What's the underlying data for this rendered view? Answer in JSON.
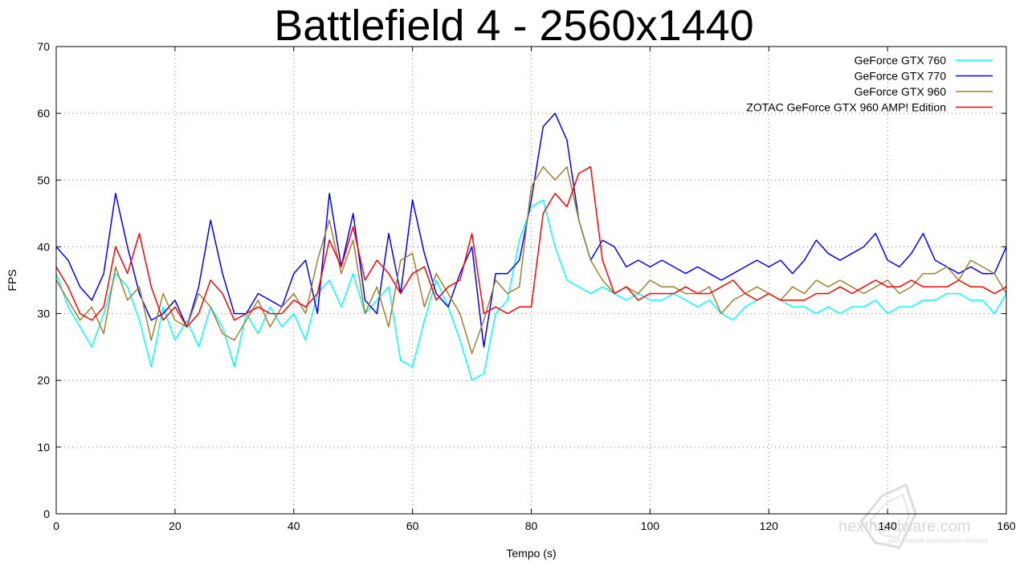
{
  "chart_data": {
    "type": "line",
    "title": "Battlefield 4 - 2560x1440",
    "xlabel": "Tempo (s)",
    "ylabel": "FPS",
    "xlim": [
      0,
      160
    ],
    "ylim": [
      0,
      70
    ],
    "xticks": [
      "0",
      "20",
      "40",
      "60",
      "80",
      "100",
      "120",
      "140",
      "160"
    ],
    "yticks": [
      "0",
      "10",
      "20",
      "30",
      "40",
      "50",
      "60",
      "70"
    ],
    "grid": true,
    "legend_position": "top-right",
    "series": [
      {
        "name": "GeForce GTX 760",
        "color": "#00ffff",
        "x": [
          0,
          2,
          4,
          6,
          8,
          10,
          12,
          14,
          16,
          18,
          20,
          22,
          24,
          26,
          28,
          30,
          32,
          34,
          36,
          38,
          40,
          42,
          44,
          46,
          48,
          50,
          52,
          54,
          56,
          58,
          60,
          62,
          64,
          66,
          68,
          70,
          72,
          74,
          76,
          78,
          80,
          82,
          84,
          86,
          88,
          90,
          92,
          94,
          96,
          98,
          100,
          102,
          104,
          106,
          108,
          110,
          112,
          114,
          116,
          118,
          120,
          122,
          124,
          126,
          128,
          130,
          132,
          134,
          136,
          138,
          140,
          142,
          144,
          146,
          148,
          150,
          152,
          154,
          156,
          158,
          160
        ],
        "y": [
          36,
          31,
          28,
          25,
          30,
          36,
          34,
          29,
          22,
          31,
          26,
          29,
          25,
          31,
          28,
          22,
          30,
          27,
          31,
          28,
          30,
          26,
          33,
          35,
          31,
          36,
          30,
          32,
          34,
          23,
          22,
          29,
          35,
          31,
          26,
          20,
          21,
          30,
          32,
          41,
          46,
          47,
          40,
          35,
          34,
          33,
          34,
          33,
          32,
          33,
          32,
          32,
          33,
          32,
          31,
          32,
          30,
          29,
          31,
          32,
          33,
          32,
          31,
          31,
          30,
          31,
          30,
          31,
          31,
          32,
          30,
          31,
          31,
          32,
          32,
          33,
          33,
          32,
          32,
          30,
          33
        ]
      },
      {
        "name": "GeForce GTX 770",
        "color": "#0000ff",
        "x": [
          0,
          2,
          4,
          6,
          8,
          10,
          12,
          14,
          16,
          18,
          20,
          22,
          24,
          26,
          28,
          30,
          32,
          34,
          36,
          38,
          40,
          42,
          44,
          46,
          48,
          50,
          52,
          54,
          56,
          58,
          60,
          62,
          64,
          66,
          68,
          70,
          72,
          74,
          76,
          78,
          80,
          82,
          84,
          86,
          88,
          90,
          92,
          94,
          96,
          98,
          100,
          102,
          104,
          106,
          108,
          110,
          112,
          114,
          116,
          118,
          120,
          122,
          124,
          126,
          128,
          130,
          132,
          134,
          136,
          138,
          140,
          142,
          144,
          146,
          148,
          150,
          152,
          154,
          156,
          158,
          160
        ],
        "y": [
          40,
          38,
          34,
          32,
          36,
          48,
          40,
          33,
          29,
          30,
          32,
          28,
          34,
          44,
          36,
          30,
          30,
          33,
          32,
          31,
          36,
          38,
          30,
          48,
          37,
          45,
          32,
          30,
          42,
          33,
          47,
          39,
          33,
          31,
          36,
          40,
          25,
          36,
          36,
          38,
          47,
          58,
          60,
          56,
          44,
          38,
          41,
          40,
          37,
          38,
          37,
          38,
          37,
          36,
          37,
          36,
          35,
          36,
          37,
          38,
          37,
          38,
          36,
          38,
          41,
          39,
          38,
          39,
          40,
          42,
          38,
          37,
          39,
          42,
          38,
          37,
          36,
          37,
          36,
          36,
          40
        ]
      },
      {
        "name": "GeForce GTX 960",
        "color": "#a08030",
        "x": [
          0,
          2,
          4,
          6,
          8,
          10,
          12,
          14,
          16,
          18,
          20,
          22,
          24,
          26,
          28,
          30,
          32,
          34,
          36,
          38,
          40,
          42,
          44,
          46,
          48,
          50,
          52,
          54,
          56,
          58,
          60,
          62,
          64,
          66,
          68,
          70,
          72,
          74,
          76,
          78,
          80,
          82,
          84,
          86,
          88,
          90,
          92,
          94,
          96,
          98,
          100,
          102,
          104,
          106,
          108,
          110,
          112,
          114,
          116,
          118,
          120,
          122,
          124,
          126,
          128,
          130,
          132,
          134,
          136,
          138,
          140,
          142,
          144,
          146,
          148,
          150,
          152,
          154,
          156,
          158,
          160
        ],
        "y": [
          35,
          32,
          29,
          31,
          27,
          37,
          32,
          34,
          26,
          33,
          29,
          28,
          33,
          31,
          27,
          26,
          29,
          32,
          28,
          31,
          33,
          30,
          38,
          44,
          36,
          41,
          30,
          34,
          28,
          38,
          39,
          31,
          36,
          33,
          30,
          24,
          29,
          35,
          33,
          34,
          49,
          52,
          50,
          52,
          44,
          38,
          35,
          33,
          34,
          33,
          35,
          34,
          34,
          33,
          33,
          34,
          30,
          32,
          33,
          34,
          33,
          32,
          34,
          33,
          35,
          34,
          35,
          34,
          33,
          34,
          35,
          33,
          34,
          36,
          36,
          37,
          35,
          38,
          37,
          36,
          33
        ]
      },
      {
        "name": "ZOTAC GeForce GTX 960 AMP! Edition",
        "color": "#ff0000",
        "x": [
          0,
          2,
          4,
          6,
          8,
          10,
          12,
          14,
          16,
          18,
          20,
          22,
          24,
          26,
          28,
          30,
          32,
          34,
          36,
          38,
          40,
          42,
          44,
          46,
          48,
          50,
          52,
          54,
          56,
          58,
          60,
          62,
          64,
          66,
          68,
          70,
          72,
          74,
          76,
          78,
          80,
          82,
          84,
          86,
          88,
          90,
          92,
          94,
          96,
          98,
          100,
          102,
          104,
          106,
          108,
          110,
          112,
          114,
          116,
          118,
          120,
          122,
          124,
          126,
          128,
          130,
          132,
          134,
          136,
          138,
          140,
          142,
          144,
          146,
          148,
          150,
          152,
          154,
          156,
          158,
          160
        ],
        "y": [
          37,
          34,
          30,
          29,
          31,
          40,
          36,
          42,
          34,
          29,
          31,
          28,
          30,
          35,
          33,
          29,
          30,
          31,
          30,
          30,
          32,
          31,
          33,
          41,
          37,
          43,
          35,
          38,
          36,
          33,
          36,
          37,
          32,
          34,
          35,
          42,
          30,
          31,
          30,
          31,
          31,
          45,
          48,
          46,
          51,
          52,
          38,
          33,
          34,
          32,
          33,
          33,
          33,
          34,
          33,
          33,
          34,
          35,
          33,
          32,
          33,
          32,
          32,
          32,
          33,
          33,
          34,
          33,
          34,
          35,
          34,
          34,
          35,
          34,
          34,
          34,
          35,
          34,
          34,
          33,
          34
        ]
      }
    ]
  },
  "watermark": {
    "brand": "nexthardware.com",
    "tagline": "your ultimate professional resource"
  }
}
